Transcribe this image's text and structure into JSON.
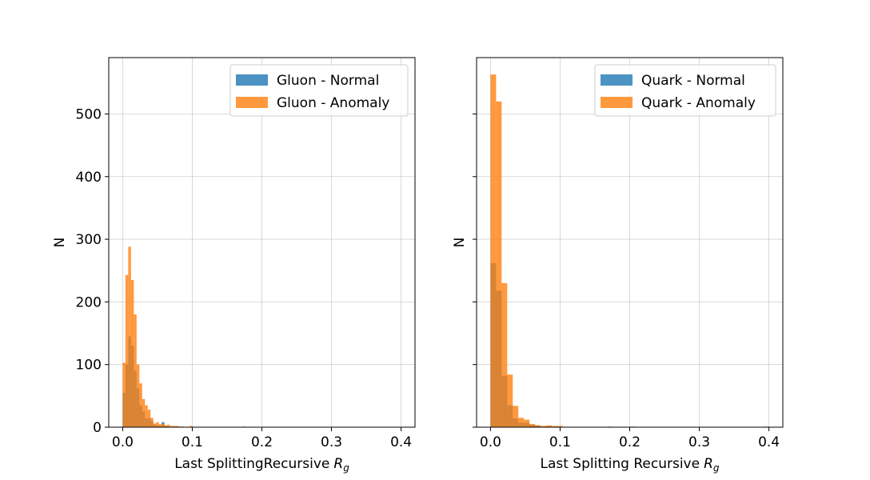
{
  "chart_data": [
    {
      "type": "histogram",
      "xlabel": "Last SplittingRecursive",
      "xlabel_symbol": "R",
      "xlabel_subscript": "g",
      "ylabel": "N",
      "xlim": [
        -0.02,
        0.42
      ],
      "ylim": [
        0,
        590
      ],
      "x_ticks": [
        "0.0",
        "0.1",
        "0.2",
        "0.3",
        "0.4"
      ],
      "x_tick_values": [
        0.0,
        0.1,
        0.2,
        0.3,
        0.4
      ],
      "y_ticks": [
        "0",
        "100",
        "200",
        "300",
        "400",
        "500"
      ],
      "y_tick_values": [
        0,
        100,
        200,
        300,
        400,
        500
      ],
      "grid": true,
      "legend_position": "top-right",
      "series": [
        {
          "name": "Gluon - Normal",
          "color": "#1f77b4",
          "bins": [
            [
              0.0,
              0.004,
              55
            ],
            [
              0.004,
              0.008,
              100
            ],
            [
              0.008,
              0.012,
              145
            ],
            [
              0.012,
              0.016,
              130
            ],
            [
              0.016,
              0.02,
              90
            ],
            [
              0.02,
              0.024,
              62
            ],
            [
              0.024,
              0.028,
              35
            ],
            [
              0.028,
              0.032,
              25
            ],
            [
              0.032,
              0.036,
              14
            ],
            [
              0.036,
              0.04,
              14
            ],
            [
              0.04,
              0.044,
              10
            ],
            [
              0.044,
              0.048,
              4
            ],
            [
              0.048,
              0.052,
              3
            ],
            [
              0.052,
              0.056,
              2
            ],
            [
              0.056,
              0.06,
              8
            ],
            [
              0.06,
              0.064,
              2
            ]
          ]
        },
        {
          "name": "Gluon - Anomaly",
          "color": "#ff7f0e",
          "bins": [
            [
              0.0,
              0.004,
              103
            ],
            [
              0.004,
              0.008,
              243
            ],
            [
              0.008,
              0.012,
              288
            ],
            [
              0.012,
              0.016,
              235
            ],
            [
              0.016,
              0.02,
              180
            ],
            [
              0.02,
              0.024,
              100
            ],
            [
              0.024,
              0.028,
              70
            ],
            [
              0.028,
              0.032,
              45
            ],
            [
              0.032,
              0.036,
              35
            ],
            [
              0.036,
              0.04,
              28
            ],
            [
              0.04,
              0.044,
              15
            ],
            [
              0.044,
              0.048,
              6
            ],
            [
              0.048,
              0.052,
              8
            ],
            [
              0.052,
              0.056,
              5
            ],
            [
              0.056,
              0.06,
              5
            ],
            [
              0.06,
              0.064,
              3
            ],
            [
              0.064,
              0.068,
              4
            ],
            [
              0.068,
              0.072,
              2
            ],
            [
              0.072,
              0.076,
              2
            ],
            [
              0.076,
              0.08,
              2
            ],
            [
              0.08,
              0.084,
              1
            ],
            [
              0.084,
              0.088,
              1
            ],
            [
              0.096,
              0.1,
              2
            ],
            [
              0.172,
              0.176,
              1
            ]
          ]
        }
      ]
    },
    {
      "type": "histogram",
      "xlabel": "Last Splitting Recursive",
      "xlabel_symbol": "R",
      "xlabel_subscript": "g",
      "ylabel": "N",
      "xlim": [
        -0.02,
        0.42
      ],
      "ylim": [
        0,
        590
      ],
      "x_ticks": [
        "0.0",
        "0.1",
        "0.2",
        "0.3",
        "0.4"
      ],
      "x_tick_values": [
        0.0,
        0.1,
        0.2,
        0.3,
        0.4
      ],
      "grid": true,
      "shared_y": true,
      "legend_position": "top-right",
      "series": [
        {
          "name": "Quark - Normal",
          "color": "#1f77b4",
          "bins": [
            [
              0.0,
              0.008,
              262
            ],
            [
              0.008,
              0.016,
              218
            ],
            [
              0.016,
              0.024,
              82
            ],
            [
              0.024,
              0.032,
              35
            ],
            [
              0.032,
              0.04,
              14
            ],
            [
              0.04,
              0.048,
              7
            ],
            [
              0.048,
              0.056,
              7
            ],
            [
              0.056,
              0.064,
              4
            ],
            [
              0.064,
              0.072,
              3
            ],
            [
              0.072,
              0.08,
              1
            ],
            [
              0.08,
              0.088,
              1
            ]
          ]
        },
        {
          "name": "Quark - Anomaly",
          "color": "#ff7f0e",
          "bins": [
            [
              0.0,
              0.008,
              563
            ],
            [
              0.008,
              0.016,
              520
            ],
            [
              0.016,
              0.024,
              230
            ],
            [
              0.024,
              0.032,
              84
            ],
            [
              0.032,
              0.04,
              34
            ],
            [
              0.04,
              0.048,
              15
            ],
            [
              0.048,
              0.056,
              12
            ],
            [
              0.056,
              0.064,
              5
            ],
            [
              0.064,
              0.072,
              3
            ],
            [
              0.072,
              0.08,
              2
            ],
            [
              0.08,
              0.088,
              3
            ],
            [
              0.088,
              0.096,
              2
            ],
            [
              0.096,
              0.104,
              2
            ],
            [
              0.168,
              0.176,
              1
            ],
            [
              0.2,
              0.208,
              1
            ],
            [
              0.392,
              0.4,
              1
            ]
          ]
        }
      ]
    }
  ]
}
